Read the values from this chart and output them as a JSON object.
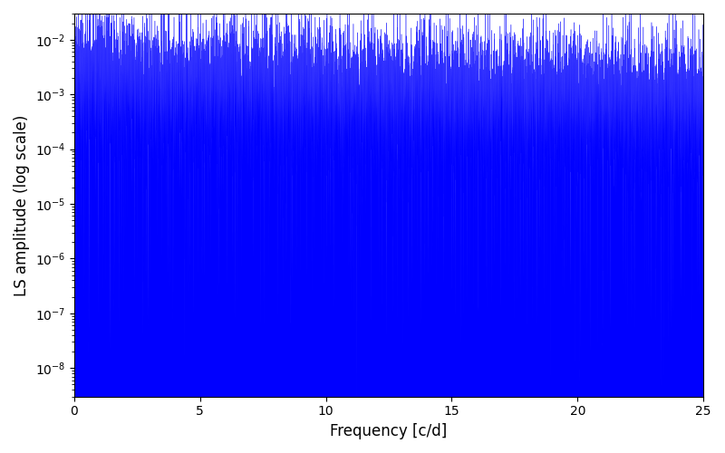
{
  "xlabel": "Frequency [c/d]",
  "ylabel": "LS amplitude (log scale)",
  "xlim": [
    0,
    25
  ],
  "ylim": [
    3e-09,
    0.03
  ],
  "line_color": "blue",
  "background_color": "white",
  "figsize": [
    8.0,
    5.0
  ],
  "dpi": 100,
  "freq_max": 25.0,
  "n_points": 15000,
  "seed": 12345
}
